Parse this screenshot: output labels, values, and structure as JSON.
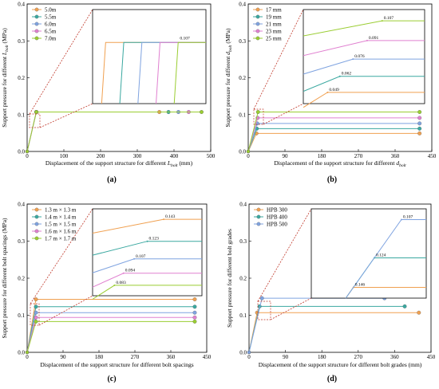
{
  "panels": [
    {
      "label": "(a)",
      "xlabel_prefix": "Displacement of the support structure for different ",
      "xlabel_var": "L",
      "xlabel_sub": "bolt",
      "xlabel_suffix": " (mm)",
      "ylabel_prefix": "Support pressure for different ",
      "ylabel_var": "L",
      "ylabel_sub": "bolt",
      "ylabel_suffix": " (MPa)"
    },
    {
      "label": "(b)",
      "xlabel_prefix": "Displacement of the support structure for different ",
      "xlabel_var": "d",
      "xlabel_sub": "bolt",
      "xlabel_suffix": "",
      "ylabel_prefix": "Support pressure for different ",
      "ylabel_var": "d",
      "ylabel_sub": "bolt",
      "ylabel_suffix": " (MPa)"
    },
    {
      "label": "(c)",
      "xlabel_prefix": "Displacement of the support structure for different bolt spacings",
      "xlabel_var": "",
      "xlabel_sub": "",
      "xlabel_suffix": "",
      "ylabel_prefix": "Support pressure for different bolt spacings (MPa)",
      "ylabel_var": "",
      "ylabel_sub": "",
      "ylabel_suffix": ""
    },
    {
      "label": "(d)",
      "xlabel_prefix": "Displacement of the support structure for different bolt grades (mm)",
      "xlabel_var": "",
      "xlabel_sub": "",
      "xlabel_suffix": "",
      "ylabel_prefix": "Support pressure for different bolt grades",
      "ylabel_var": "",
      "ylabel_sub": "",
      "ylabel_suffix": ""
    }
  ],
  "chart_data": [
    {
      "type": "line",
      "xlim": [
        0,
        500
      ],
      "ylim": [
        0,
        0.4
      ],
      "xticks": [
        "0",
        "100",
        "200",
        "300",
        "400",
        "500"
      ],
      "yticks": [
        "0.0",
        "0.1",
        "0.2",
        "0.3",
        "0.4"
      ],
      "legend_position": "top-left",
      "series": [
        {
          "name": "5.0m",
          "color": "#f0a050",
          "points": [
            [
              0,
              0
            ],
            [
              25,
              0.107
            ],
            [
              360,
              0.107
            ]
          ]
        },
        {
          "name": "5.5m",
          "color": "#3aa8a0",
          "points": [
            [
              0,
              0
            ],
            [
              25,
              0.107
            ],
            [
              385,
              0.107
            ]
          ]
        },
        {
          "name": "6.0m",
          "color": "#7fa3e0",
          "points": [
            [
              0,
              0
            ],
            [
              25,
              0.107
            ],
            [
              412,
              0.107
            ]
          ]
        },
        {
          "name": "6.5m",
          "color": "#e080d0",
          "points": [
            [
              0,
              0
            ],
            [
              25,
              0.107
            ],
            [
              440,
              0.107
            ]
          ]
        },
        {
          "name": "7.0m",
          "color": "#9acd32",
          "points": [
            [
              0,
              0
            ],
            [
              25,
              0.107
            ],
            [
              475,
              0.107
            ]
          ]
        }
      ],
      "inset_annotations": [
        "0.107"
      ]
    },
    {
      "type": "line",
      "xlim": [
        0,
        450
      ],
      "ylim": [
        0,
        0.4
      ],
      "xticks": [
        "0",
        "90",
        "180",
        "270",
        "360",
        "450"
      ],
      "yticks": [
        "0.0",
        "0.1",
        "0.2",
        "0.3",
        "0.4"
      ],
      "legend_position": "top-left",
      "series": [
        {
          "name": "17 mm",
          "color": "#f0a050",
          "points": [
            [
              0,
              0
            ],
            [
              20,
              0.049
            ],
            [
              420,
              0.049
            ]
          ]
        },
        {
          "name": "19 mm",
          "color": "#3aa8a0",
          "points": [
            [
              0,
              0
            ],
            [
              21,
              0.062
            ],
            [
              420,
              0.062
            ]
          ]
        },
        {
          "name": "21 mm",
          "color": "#7fa3e0",
          "points": [
            [
              0,
              0
            ],
            [
              22,
              0.076
            ],
            [
              420,
              0.076
            ]
          ]
        },
        {
          "name": "23 mm",
          "color": "#e080d0",
          "points": [
            [
              0,
              0
            ],
            [
              23,
              0.091
            ],
            [
              420,
              0.091
            ]
          ]
        },
        {
          "name": "25 mm",
          "color": "#9acd32",
          "points": [
            [
              0,
              0
            ],
            [
              24,
              0.107
            ],
            [
              420,
              0.107
            ]
          ]
        }
      ],
      "inset_annotations": [
        "0.049",
        "0.062",
        "0.076",
        "0.091",
        "0.107"
      ]
    },
    {
      "type": "line",
      "xlim": [
        0,
        450
      ],
      "ylim": [
        0,
        0.4
      ],
      "xticks": [
        "0",
        "90",
        "180",
        "270",
        "360",
        "450"
      ],
      "yticks": [
        "0.0",
        "0.1",
        "0.2",
        "0.3",
        "0.4"
      ],
      "legend_position": "top-left",
      "series": [
        {
          "name": "1.3 m × 1.3 m",
          "color": "#f0a050",
          "points": [
            [
              0,
              0
            ],
            [
              22,
              0.143
            ],
            [
              420,
              0.143
            ]
          ]
        },
        {
          "name": "1.4 m × 1.4 m",
          "color": "#3aa8a0",
          "points": [
            [
              0,
              0
            ],
            [
              22,
              0.123
            ],
            [
              420,
              0.123
            ]
          ]
        },
        {
          "name": "1.5 m × 1.5 m",
          "color": "#7fa3e0",
          "points": [
            [
              0,
              0
            ],
            [
              22,
              0.107
            ],
            [
              420,
              0.107
            ]
          ]
        },
        {
          "name": "1.6 m × 1.6 m",
          "color": "#e080d0",
          "points": [
            [
              0,
              0
            ],
            [
              22,
              0.094
            ],
            [
              420,
              0.094
            ]
          ]
        },
        {
          "name": "1.7 m × 1.7 m",
          "color": "#9acd32",
          "points": [
            [
              0,
              0
            ],
            [
              22,
              0.083
            ],
            [
              420,
              0.083
            ]
          ]
        }
      ],
      "inset_annotations": [
        "0.143",
        "0.123",
        "0.107",
        "0.094",
        "0.083"
      ]
    },
    {
      "type": "line",
      "xlim": [
        0,
        450
      ],
      "ylim": [
        0,
        0.4
      ],
      "xticks": [
        "0",
        "90",
        "180",
        "270",
        "360",
        "450"
      ],
      "yticks": [
        "0.0",
        "0.1",
        "0.2",
        "0.3",
        "0.4"
      ],
      "legend_position": "top-left",
      "series": [
        {
          "name": "HPB 300",
          "color": "#f0a050",
          "points": [
            [
              0,
              0
            ],
            [
              20,
              0.107
            ],
            [
              420,
              0.107
            ]
          ]
        },
        {
          "name": "HPB 400",
          "color": "#3aa8a0",
          "points": [
            [
              0,
              0
            ],
            [
              26,
              0.124
            ],
            [
              385,
              0.124
            ]
          ]
        },
        {
          "name": "HPB 500",
          "color": "#7fa3e0",
          "points": [
            [
              0,
              0
            ],
            [
              32,
              0.146
            ],
            [
              335,
              0.146
            ]
          ]
        }
      ],
      "inset_annotations": [
        "0.146",
        "0.124",
        "0.107"
      ]
    }
  ]
}
